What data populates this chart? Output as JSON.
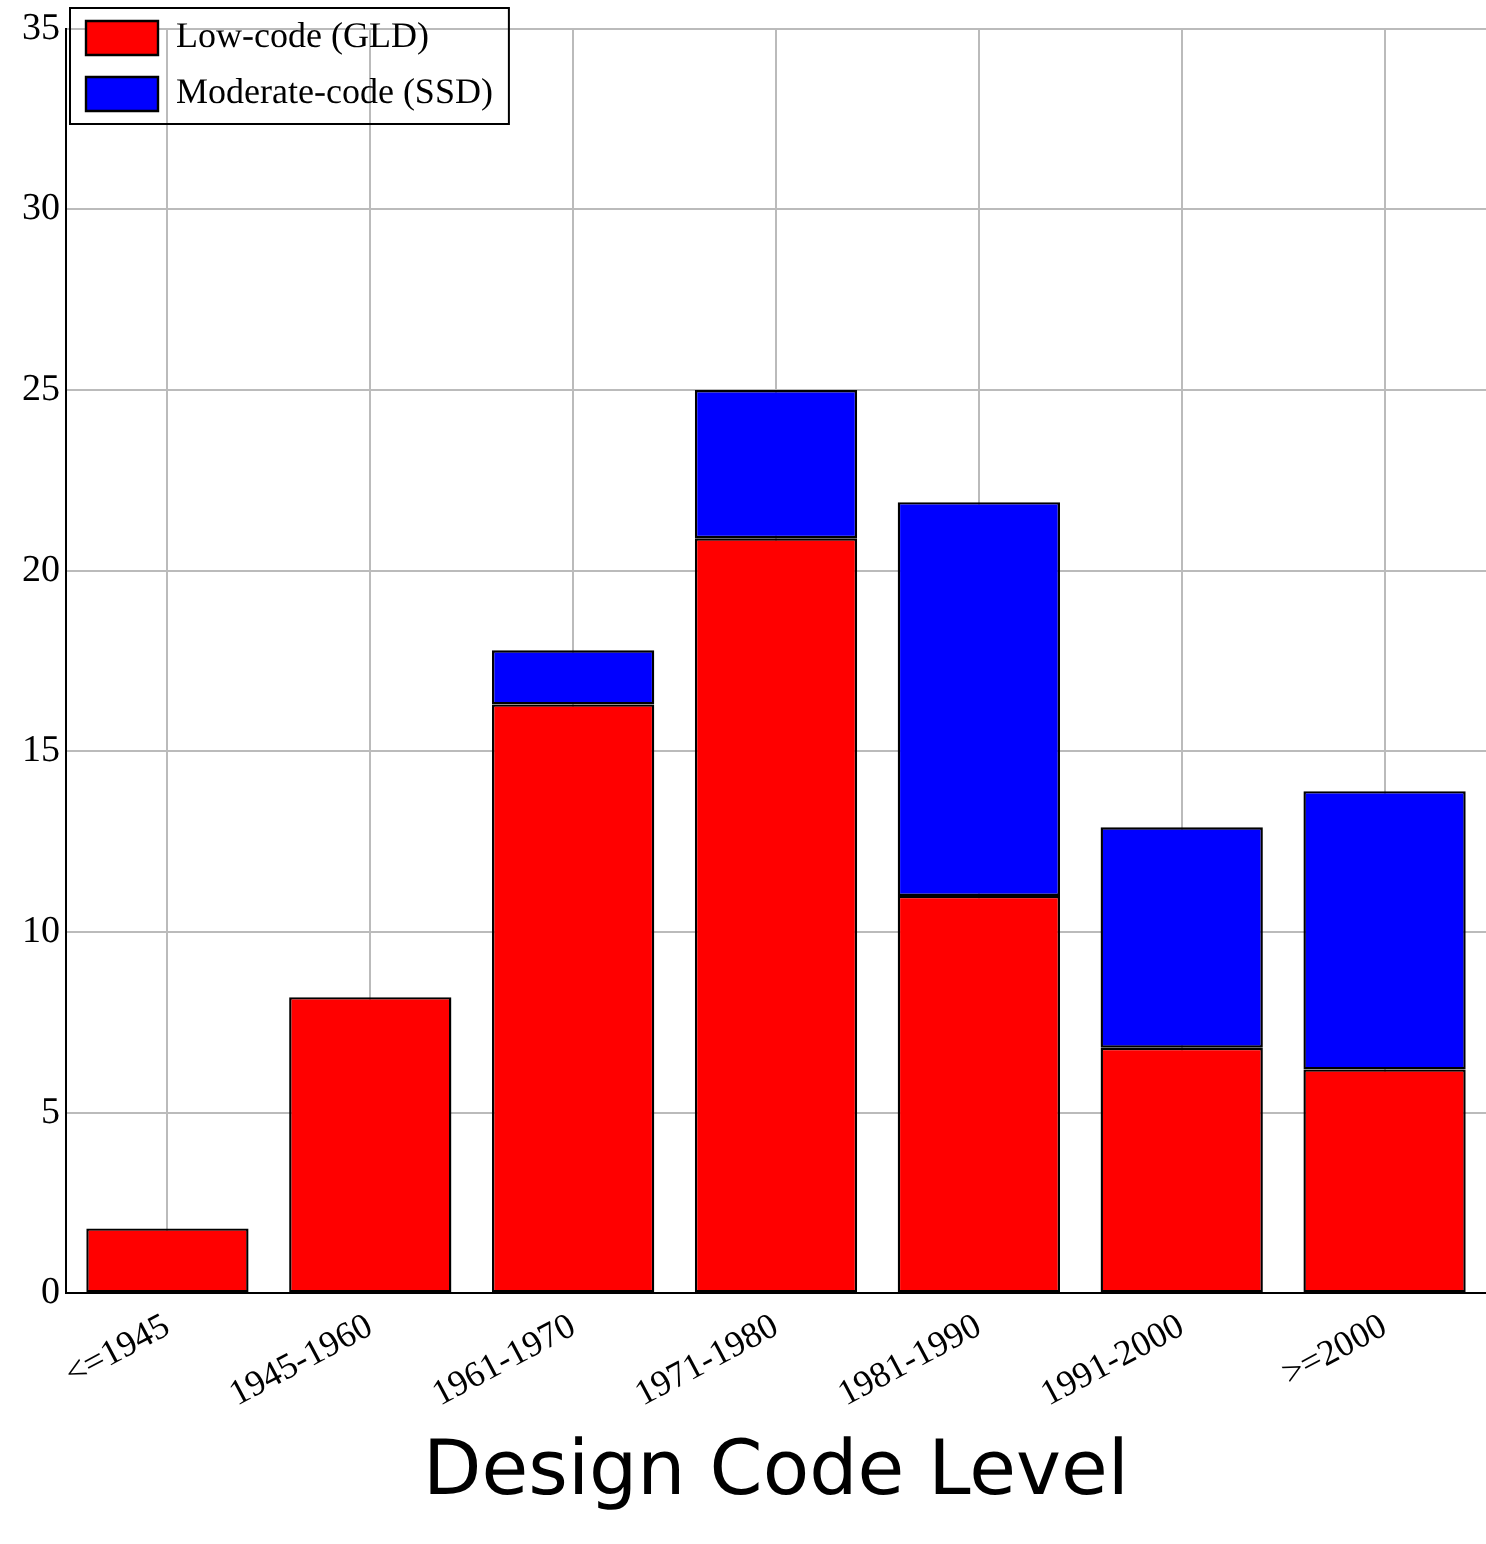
{
  "chart_data": {
    "type": "bar",
    "stacked": true,
    "xlabel": "Design Code Level",
    "categories": [
      "<=1945",
      "1945-1960",
      "1961-1970",
      "1971-1980",
      "1981-1990",
      "1991-2000",
      ">=2000"
    ],
    "series": [
      {
        "name": "Low-code (GLD)",
        "color": "#ff0000",
        "values": [
          1.8,
          8.2,
          16.3,
          20.9,
          11.0,
          6.8,
          6.2
        ]
      },
      {
        "name": "Moderate-code (SSD)",
        "color": "#0000ff",
        "values": [
          0,
          0,
          1.5,
          4.1,
          10.9,
          6.1,
          7.7
        ]
      }
    ],
    "ylim": [
      0,
      35
    ],
    "yticks": [
      0,
      5,
      10,
      15,
      20,
      25,
      30,
      35
    ],
    "grid": true,
    "legend": "top left"
  }
}
